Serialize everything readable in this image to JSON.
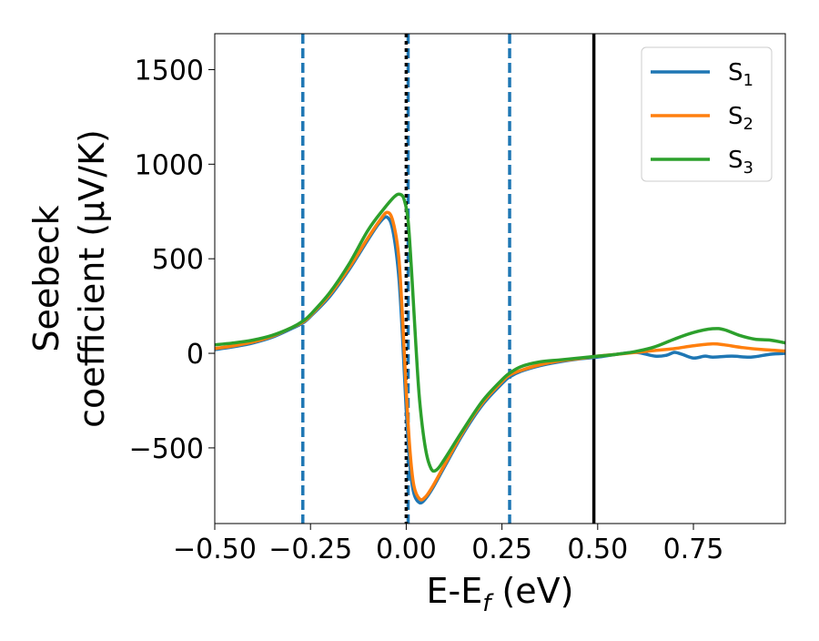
{
  "chart_data": {
    "type": "line",
    "title": "",
    "xlabel": "E-E_f (eV)",
    "ylabel": "Seebeck coefficient (μV/K)",
    "ylabel_lines": [
      "Seebeck",
      "coefficient  (μV/K)"
    ],
    "xlabel_parts": {
      "main": "E-E",
      "sub": "f",
      "rest": " (eV)"
    },
    "xlim": [
      -0.5,
      0.99
    ],
    "ylim": [
      -900,
      1690
    ],
    "xticks": [
      -0.5,
      -0.25,
      0.0,
      0.25,
      0.5,
      0.75
    ],
    "xtick_labels": [
      "−0.50",
      "−0.25",
      "0.00",
      "0.25",
      "0.50",
      "0.75"
    ],
    "yticks": [
      -500,
      0,
      500,
      1000,
      1500
    ],
    "ytick_labels": [
      "−500",
      "0",
      "500",
      "1000",
      "1500"
    ],
    "grid": false,
    "legend_position": "top-right",
    "vlines": [
      {
        "x": -0.27,
        "style": "dashed",
        "color": "#1f77b4"
      },
      {
        "x": 0.005,
        "style": "dashed",
        "color": "#1f77b4"
      },
      {
        "x": 0.0,
        "style": "dotted",
        "color": "#000000"
      },
      {
        "x": 0.27,
        "style": "dashed",
        "color": "#1f77b4"
      },
      {
        "x": 0.49,
        "style": "solid",
        "color": "#000000"
      }
    ],
    "series": [
      {
        "name": "S",
        "subscript": "1",
        "color": "#1f77b4",
        "points": [
          [
            -0.5,
            20
          ],
          [
            -0.45,
            35
          ],
          [
            -0.4,
            55
          ],
          [
            -0.35,
            85
          ],
          [
            -0.3,
            130
          ],
          [
            -0.27,
            160
          ],
          [
            -0.25,
            195
          ],
          [
            -0.2,
            300
          ],
          [
            -0.15,
            440
          ],
          [
            -0.1,
            600
          ],
          [
            -0.07,
            690
          ],
          [
            -0.05,
            720
          ],
          [
            -0.035,
            650
          ],
          [
            -0.02,
            420
          ],
          [
            -0.01,
            100
          ],
          [
            0.0,
            -300
          ],
          [
            0.01,
            -600
          ],
          [
            0.02,
            -740
          ],
          [
            0.035,
            -790
          ],
          [
            0.05,
            -770
          ],
          [
            0.07,
            -710
          ],
          [
            0.1,
            -600
          ],
          [
            0.15,
            -420
          ],
          [
            0.2,
            -270
          ],
          [
            0.25,
            -160
          ],
          [
            0.27,
            -125
          ],
          [
            0.3,
            -95
          ],
          [
            0.35,
            -65
          ],
          [
            0.4,
            -45
          ],
          [
            0.45,
            -30
          ],
          [
            0.5,
            -20
          ],
          [
            0.55,
            -5
          ],
          [
            0.6,
            5
          ],
          [
            0.65,
            -15
          ],
          [
            0.68,
            -10
          ],
          [
            0.7,
            5
          ],
          [
            0.72,
            -5
          ],
          [
            0.75,
            -25
          ],
          [
            0.78,
            -15
          ],
          [
            0.8,
            -20
          ],
          [
            0.85,
            -15
          ],
          [
            0.9,
            -20
          ],
          [
            0.95,
            -5
          ],
          [
            0.99,
            0
          ]
        ]
      },
      {
        "name": "S",
        "subscript": "2",
        "color": "#ff7f0e",
        "points": [
          [
            -0.5,
            25
          ],
          [
            -0.45,
            40
          ],
          [
            -0.4,
            60
          ],
          [
            -0.35,
            90
          ],
          [
            -0.3,
            135
          ],
          [
            -0.27,
            165
          ],
          [
            -0.25,
            200
          ],
          [
            -0.2,
            310
          ],
          [
            -0.15,
            450
          ],
          [
            -0.1,
            610
          ],
          [
            -0.07,
            700
          ],
          [
            -0.05,
            745
          ],
          [
            -0.035,
            700
          ],
          [
            -0.02,
            520
          ],
          [
            -0.01,
            200
          ],
          [
            0.0,
            -200
          ],
          [
            0.01,
            -520
          ],
          [
            0.02,
            -700
          ],
          [
            0.035,
            -770
          ],
          [
            0.05,
            -760
          ],
          [
            0.07,
            -700
          ],
          [
            0.1,
            -590
          ],
          [
            0.15,
            -410
          ],
          [
            0.2,
            -260
          ],
          [
            0.25,
            -150
          ],
          [
            0.27,
            -115
          ],
          [
            0.3,
            -90
          ],
          [
            0.35,
            -60
          ],
          [
            0.4,
            -40
          ],
          [
            0.45,
            -28
          ],
          [
            0.5,
            -15
          ],
          [
            0.55,
            -5
          ],
          [
            0.6,
            5
          ],
          [
            0.65,
            15
          ],
          [
            0.7,
            25
          ],
          [
            0.75,
            40
          ],
          [
            0.8,
            50
          ],
          [
            0.83,
            45
          ],
          [
            0.88,
            30
          ],
          [
            0.93,
            20
          ],
          [
            0.99,
            12
          ]
        ]
      },
      {
        "name": "S",
        "subscript": "3",
        "color": "#2ca02c",
        "points": [
          [
            -0.5,
            45
          ],
          [
            -0.45,
            55
          ],
          [
            -0.4,
            70
          ],
          [
            -0.35,
            95
          ],
          [
            -0.3,
            135
          ],
          [
            -0.27,
            170
          ],
          [
            -0.25,
            205
          ],
          [
            -0.2,
            320
          ],
          [
            -0.15,
            470
          ],
          [
            -0.1,
            650
          ],
          [
            -0.06,
            760
          ],
          [
            -0.03,
            830
          ],
          [
            -0.015,
            840
          ],
          [
            -0.005,
            810
          ],
          [
            0.005,
            700
          ],
          [
            0.015,
            400
          ],
          [
            0.025,
            50
          ],
          [
            0.035,
            -250
          ],
          [
            0.05,
            -500
          ],
          [
            0.065,
            -610
          ],
          [
            0.08,
            -615
          ],
          [
            0.1,
            -560
          ],
          [
            0.15,
            -400
          ],
          [
            0.2,
            -250
          ],
          [
            0.25,
            -140
          ],
          [
            0.27,
            -105
          ],
          [
            0.3,
            -70
          ],
          [
            0.35,
            -45
          ],
          [
            0.4,
            -35
          ],
          [
            0.45,
            -25
          ],
          [
            0.5,
            -15
          ],
          [
            0.55,
            -5
          ],
          [
            0.6,
            10
          ],
          [
            0.65,
            35
          ],
          [
            0.7,
            75
          ],
          [
            0.75,
            110
          ],
          [
            0.8,
            130
          ],
          [
            0.83,
            125
          ],
          [
            0.87,
            95
          ],
          [
            0.91,
            75
          ],
          [
            0.95,
            70
          ],
          [
            0.99,
            55
          ]
        ]
      }
    ]
  }
}
